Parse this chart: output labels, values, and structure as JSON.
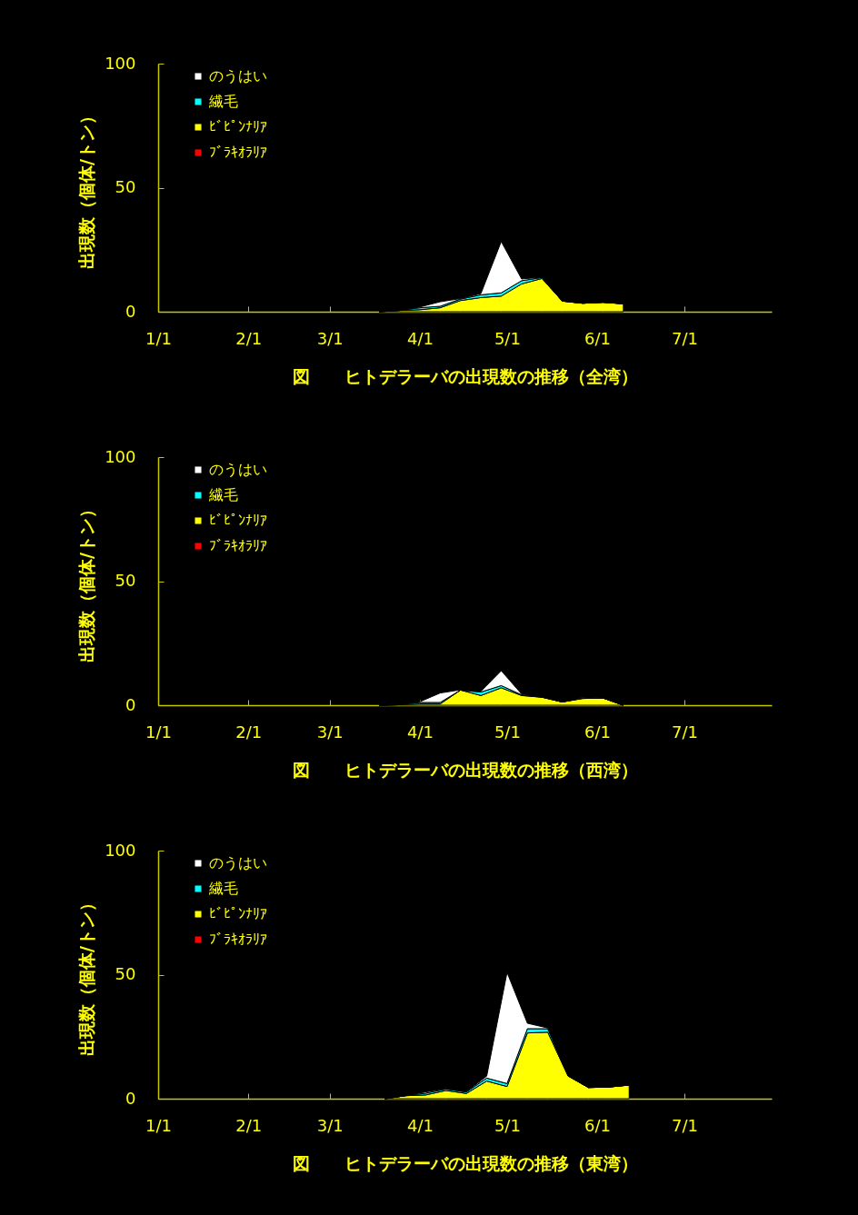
{
  "chart_data": [
    {
      "type": "area",
      "stacked": true,
      "title": "図　　ヒトデラーバの出現数の推移（全湾）",
      "ylabel": "出現数（個体/トン）",
      "legend": "top left",
      "x": [
        "--03-18",
        "--03-25",
        "--04-01",
        "--04-08",
        "--04-15",
        "--04-22",
        "--04-29",
        "--05-06",
        "--05-13",
        "--05-20",
        "--05-27",
        "--06-03",
        "--06-10"
      ],
      "series": [
        {
          "name": "ﾌﾞﾗｷｵﾗﾘｱ",
          "color": "#ff0000",
          "values": [
            null,
            null,
            null,
            null,
            null,
            null,
            null,
            null,
            null,
            null,
            null,
            null,
            null
          ]
        },
        {
          "name": "ﾋﾞﾋﾟﾝﾅﾘｱ",
          "color": "#ffff00",
          "values": [
            0,
            0.5,
            0.8,
            1.6,
            4.5,
            5.7,
            6.3,
            11.2,
            13.4,
            4.3,
            3.4,
            3.8,
            3.2
          ]
        },
        {
          "name": "繊毛",
          "color": "#00ffff",
          "values": [
            0,
            0,
            0.8,
            0.6,
            0.6,
            1.1,
            1.3,
            1.3,
            0.4,
            0,
            0,
            0,
            0
          ]
        },
        {
          "name": "のうはい",
          "color": "#ffffff",
          "values": [
            0,
            0,
            0.3,
            1.8,
            0.2,
            0.5,
            20.7,
            0.7,
            0.1,
            0,
            0,
            0,
            0
          ]
        }
      ],
      "xlim": [
        "--01-01",
        "--07-31"
      ],
      "xticks": [
        {
          "value": "--01-01",
          "label": "1/1"
        },
        {
          "value": "--02-01",
          "label": "2/1"
        },
        {
          "value": "--03-01",
          "label": "3/1"
        },
        {
          "value": "--04-01",
          "label": "4/1"
        },
        {
          "value": "--05-01",
          "label": "5/1"
        },
        {
          "value": "--06-01",
          "label": "6/1"
        },
        {
          "value": "--07-01",
          "label": "7/1"
        }
      ],
      "ylim": [
        0,
        100
      ],
      "yticks": [
        0,
        50,
        100
      ]
    },
    {
      "type": "area",
      "stacked": true,
      "title": "図　　ヒトデラーバの出現数の推移（西湾）",
      "ylabel": "出現数（個体/トン）",
      "legend": "top left",
      "x": [
        "--03-18",
        "--03-25",
        "--04-01",
        "--04-08",
        "--04-15",
        "--04-22",
        "--04-29",
        "--05-06",
        "--05-13",
        "--05-20",
        "--05-27",
        "--06-03",
        "--06-10"
      ],
      "series": [
        {
          "name": "ﾌﾞﾗｷｵﾗﾘｱ",
          "color": "#ff0000",
          "values": [
            null,
            null,
            null,
            null,
            null,
            null,
            null,
            null,
            null,
            null,
            null,
            null,
            null
          ]
        },
        {
          "name": "ﾋﾞﾋﾟﾝﾅﾘｱ",
          "color": "#ffff00",
          "values": [
            0,
            0.2,
            0.5,
            0.5,
            6.1,
            3.9,
            7.0,
            3.9,
            3.2,
            1.3,
            2.7,
            2.9,
            0
          ]
        },
        {
          "name": "繊毛",
          "color": "#00ffff",
          "values": [
            0,
            0,
            0.6,
            0.6,
            0,
            1.4,
            0.9,
            0.3,
            0.1,
            0,
            0.2,
            0,
            0
          ]
        },
        {
          "name": "のうはい",
          "color": "#ffffff",
          "values": [
            0,
            0,
            0.3,
            3.8,
            0.1,
            0.3,
            6.0,
            0.3,
            0,
            0,
            0.3,
            0,
            0
          ]
        }
      ],
      "xlim": [
        "--01-01",
        "--07-31"
      ],
      "xticks": [
        {
          "value": "--01-01",
          "label": "1/1"
        },
        {
          "value": "--02-01",
          "label": "2/1"
        },
        {
          "value": "--03-01",
          "label": "3/1"
        },
        {
          "value": "--04-01",
          "label": "4/1"
        },
        {
          "value": "--05-01",
          "label": "5/1"
        },
        {
          "value": "--06-01",
          "label": "6/1"
        },
        {
          "value": "--07-01",
          "label": "7/1"
        }
      ],
      "ylim": [
        0,
        100
      ],
      "yticks": [
        0,
        50,
        100
      ]
    },
    {
      "type": "area",
      "stacked": true,
      "title": "図　　ヒトデラーバの出現数の推移（東湾）",
      "ylabel": "出現数（個体/トン）",
      "legend": "top left",
      "x": [
        "--03-20",
        "--03-27",
        "--04-03",
        "--04-10",
        "--04-17",
        "--04-24",
        "--05-01",
        "--05-08",
        "--05-15",
        "--05-22",
        "--05-29",
        "--06-05",
        "--06-12"
      ],
      "series": [
        {
          "name": "ﾌﾞﾗｷｵﾗﾘｱ",
          "color": "#ff0000",
          "values": [
            null,
            null,
            null,
            null,
            null,
            null,
            null,
            null,
            null,
            null,
            null,
            null,
            null
          ]
        },
        {
          "name": "ﾋﾞﾋﾟﾝﾅﾘｱ",
          "color": "#ffff00",
          "values": [
            0,
            1.2,
            1.5,
            3.3,
            2.1,
            7.1,
            4.9,
            26.5,
            26.8,
            9.1,
            4.5,
            4.7,
            5.5
          ]
        },
        {
          "name": "繊毛",
          "color": "#00ffff",
          "values": [
            0,
            0,
            0.7,
            0.6,
            0.6,
            1.2,
            1.2,
            1.7,
            1.4,
            0.2,
            0,
            0,
            0
          ]
        },
        {
          "name": "のうはい",
          "color": "#ffffff",
          "values": [
            0,
            0,
            0.5,
            0.2,
            0.1,
            0.8,
            44.8,
            2.2,
            0.3,
            0,
            0,
            0,
            0
          ]
        }
      ],
      "xlim": [
        "--01-01",
        "--07-31"
      ],
      "xticks": [
        {
          "value": "--01-01",
          "label": "1/1"
        },
        {
          "value": "--02-01",
          "label": "2/1"
        },
        {
          "value": "--03-01",
          "label": "3/1"
        },
        {
          "value": "--04-01",
          "label": "4/1"
        },
        {
          "value": "--05-01",
          "label": "5/1"
        },
        {
          "value": "--06-01",
          "label": "6/1"
        },
        {
          "value": "--07-01",
          "label": "7/1"
        }
      ],
      "ylim": [
        0,
        100
      ],
      "yticks": [
        0,
        50,
        100
      ]
    }
  ]
}
